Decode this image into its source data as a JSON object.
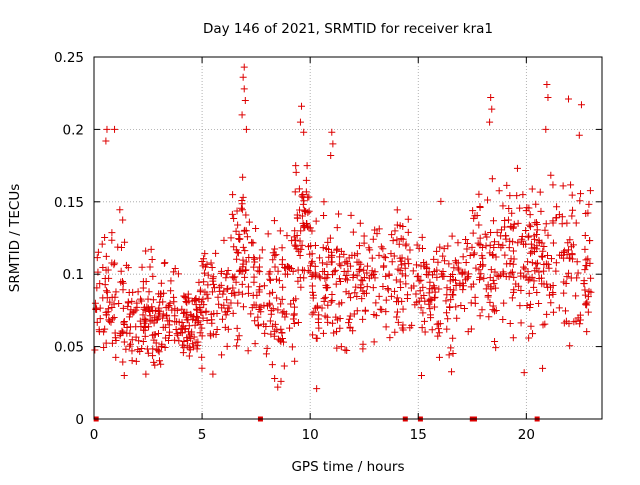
{
  "chart_data": {
    "type": "scatter",
    "title": "Day 146 of 2021, SRMTID for receiver kra1",
    "xlabel": "GPS time / hours",
    "ylabel": "SRMTID / TECUs",
    "xlim": [
      0,
      23.5
    ],
    "ylim": [
      0,
      0.25
    ],
    "xticks": [
      0,
      5,
      10,
      15,
      20
    ],
    "xtick_labels": [
      "0",
      "5",
      "10",
      "15",
      "20"
    ],
    "yticks": [
      0,
      0.05,
      0.1,
      0.15,
      0.2,
      0.25
    ],
    "ytick_labels": [
      "0",
      "0.05",
      "0.1",
      "0.15",
      "0.2",
      "0.25"
    ],
    "grid": true,
    "marker": "plus",
    "color": "#dd0000",
    "zero_markers_x": [
      0.1,
      7.7,
      14.4,
      15.1,
      17.5,
      17.6,
      20.5
    ],
    "highlighted_points": [
      {
        "x": 6.95,
        "y": 0.243
      },
      {
        "x": 6.9,
        "y": 0.236
      },
      {
        "x": 6.95,
        "y": 0.228
      },
      {
        "x": 7.0,
        "y": 0.22
      },
      {
        "x": 6.85,
        "y": 0.21
      },
      {
        "x": 7.05,
        "y": 0.2
      },
      {
        "x": 0.6,
        "y": 0.2
      },
      {
        "x": 0.95,
        "y": 0.2
      },
      {
        "x": 0.55,
        "y": 0.192
      },
      {
        "x": 9.6,
        "y": 0.216
      },
      {
        "x": 9.55,
        "y": 0.205
      },
      {
        "x": 9.7,
        "y": 0.198
      },
      {
        "x": 11.0,
        "y": 0.198
      },
      {
        "x": 11.05,
        "y": 0.19
      },
      {
        "x": 10.95,
        "y": 0.182
      },
      {
        "x": 18.35,
        "y": 0.222
      },
      {
        "x": 18.4,
        "y": 0.214
      },
      {
        "x": 18.3,
        "y": 0.205
      },
      {
        "x": 20.95,
        "y": 0.231
      },
      {
        "x": 21.0,
        "y": 0.222
      },
      {
        "x": 20.9,
        "y": 0.2
      },
      {
        "x": 21.95,
        "y": 0.221
      },
      {
        "x": 22.55,
        "y": 0.217
      },
      {
        "x": 22.45,
        "y": 0.196
      },
      {
        "x": 10.3,
        "y": 0.021
      },
      {
        "x": 8.5,
        "y": 0.022
      },
      {
        "x": 8.65,
        "y": 0.026
      },
      {
        "x": 15.15,
        "y": 0.03
      },
      {
        "x": 19.9,
        "y": 0.032
      },
      {
        "x": 20.75,
        "y": 0.035
      },
      {
        "x": 1.4,
        "y": 0.03
      },
      {
        "x": 2.4,
        "y": 0.031
      },
      {
        "x": 5.5,
        "y": 0.031
      }
    ],
    "bands": [
      {
        "x_start": 0.0,
        "x_end": 1.5,
        "y_center": 0.085,
        "spread": 0.028,
        "count": 80
      },
      {
        "x_start": 1.5,
        "x_end": 5.0,
        "y_center": 0.072,
        "spread": 0.018,
        "count": 230
      },
      {
        "x_start": 5.0,
        "x_end": 6.4,
        "y_center": 0.085,
        "spread": 0.02,
        "count": 70
      },
      {
        "x_start": 6.4,
        "x_end": 7.4,
        "y_center": 0.108,
        "spread": 0.03,
        "count": 70
      },
      {
        "x_start": 7.4,
        "x_end": 9.3,
        "y_center": 0.085,
        "spread": 0.025,
        "count": 110
      },
      {
        "x_start": 9.3,
        "x_end": 10.0,
        "y_center": 0.125,
        "spread": 0.035,
        "count": 55
      },
      {
        "x_start": 10.0,
        "x_end": 15.0,
        "y_center": 0.095,
        "spread": 0.023,
        "count": 260
      },
      {
        "x_start": 15.0,
        "x_end": 17.5,
        "y_center": 0.092,
        "spread": 0.024,
        "count": 130
      },
      {
        "x_start": 17.5,
        "x_end": 20.0,
        "y_center": 0.112,
        "spread": 0.03,
        "count": 140
      },
      {
        "x_start": 20.0,
        "x_end": 23.0,
        "y_center": 0.11,
        "spread": 0.03,
        "count": 170
      }
    ]
  }
}
